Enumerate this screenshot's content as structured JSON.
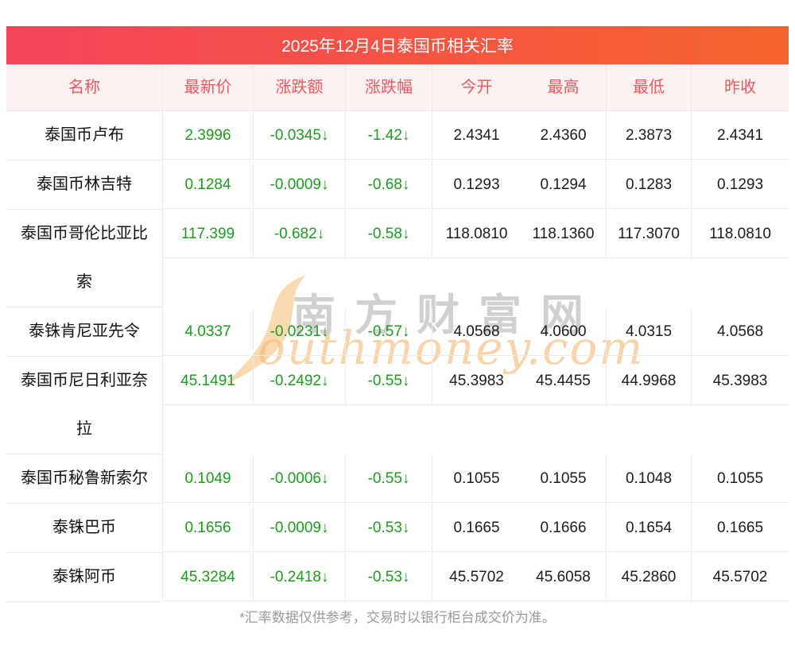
{
  "header": {
    "title": "2025年12月4日泰国币相关汇率"
  },
  "watermark": {
    "cn": "南方财富网",
    "en": "outhmoney.com"
  },
  "table": {
    "columns": [
      "名称",
      "最新价",
      "涨跌额",
      "涨跌幅",
      "今开",
      "最高",
      "最低",
      "昨收"
    ],
    "rows": [
      {
        "name": "泰国币卢布",
        "latest": "2.3996",
        "change": "-0.0345↓",
        "pct": "-1.42↓",
        "open": "2.4341",
        "high": "2.4360",
        "low": "2.3873",
        "prev": "2.4341"
      },
      {
        "name": "泰国币林吉特",
        "latest": "0.1284",
        "change": "-0.0009↓",
        "pct": "-0.68↓",
        "open": "0.1293",
        "high": "0.1294",
        "low": "0.1283",
        "prev": "0.1293"
      },
      {
        "name": "泰国币哥伦比亚比索",
        "latest": "117.399",
        "change": "-0.682↓",
        "pct": "-0.58↓",
        "open": "118.0810",
        "high": "118.1360",
        "low": "117.3070",
        "prev": "118.0810"
      },
      {
        "name": "泰铢肯尼亚先令",
        "latest": "4.0337",
        "change": "-0.0231↓",
        "pct": "-0.57↓",
        "open": "4.0568",
        "high": "4.0600",
        "low": "4.0315",
        "prev": "4.0568"
      },
      {
        "name": "泰国币尼日利亚奈拉",
        "latest": "45.1491",
        "change": "-0.2492↓",
        "pct": "-0.55↓",
        "open": "45.3983",
        "high": "45.4455",
        "low": "44.9968",
        "prev": "45.3983"
      },
      {
        "name": "泰国币秘鲁新索尔",
        "latest": "0.1049",
        "change": "-0.0006↓",
        "pct": "-0.55↓",
        "open": "0.1055",
        "high": "0.1055",
        "low": "0.1048",
        "prev": "0.1055"
      },
      {
        "name": "泰铢巴币",
        "latest": "0.1656",
        "change": "-0.0009↓",
        "pct": "-0.53↓",
        "open": "0.1665",
        "high": "0.1666",
        "low": "0.1654",
        "prev": "0.1665"
      },
      {
        "name": "泰铢阿币",
        "latest": "45.3284",
        "change": "-0.2418↓",
        "pct": "-0.53↓",
        "open": "45.5702",
        "high": "45.6058",
        "low": "45.2860",
        "prev": "45.5702"
      }
    ]
  },
  "footer": {
    "note": "*汇率数据仅供参考，交易时以银行柜台成交价为准。"
  },
  "colors": {
    "title_gradient_left": "#f4445b",
    "title_gradient_right": "#f7632d",
    "header_bg": "#fdf2f2",
    "header_text": "#f7565e",
    "down_green": "#1d9b1d",
    "value_black": "#1c1c1c",
    "border_gray": "#ebebeb",
    "footnote_gray": "#9a9a9a",
    "watermark_orange": "#f4b876",
    "watermark_gray": "#969696"
  }
}
